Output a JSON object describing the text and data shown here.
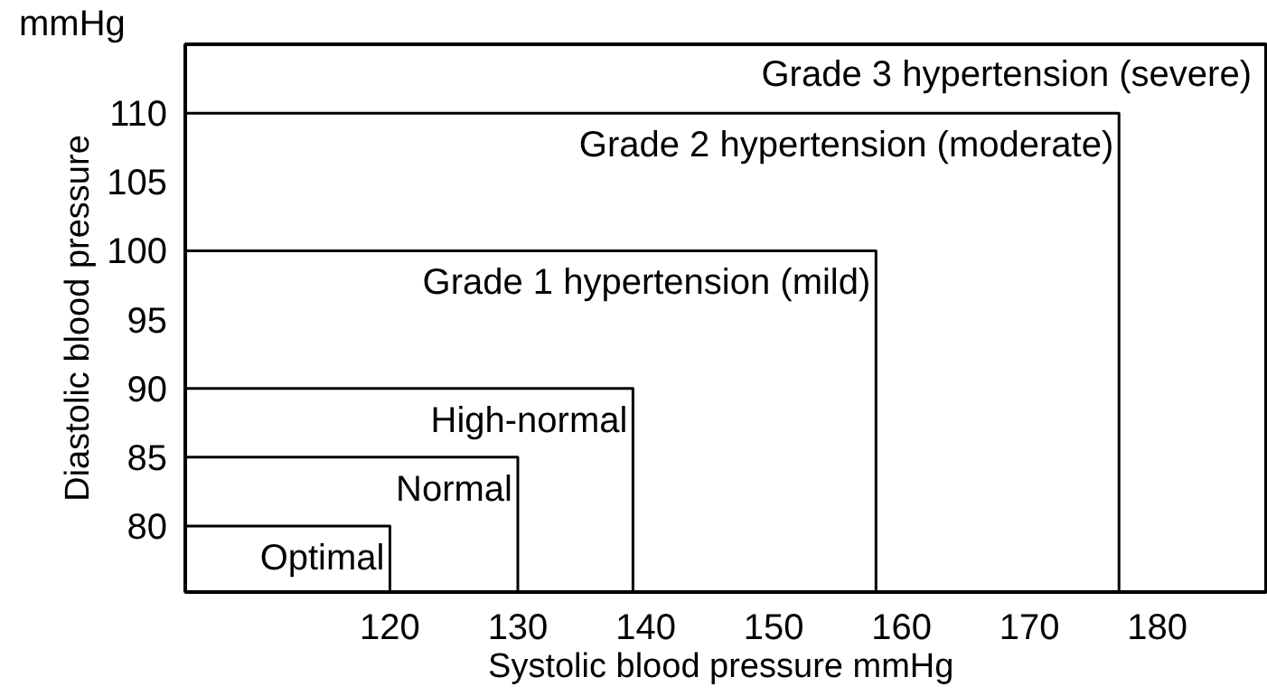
{
  "chart_data": {
    "type": "line",
    "xlabel": "Systolic blood pressure  mmHg",
    "ylabel": "Diastolic blood pressure",
    "annotations": [
      "mmHg",
      "Grade 3 hypertension (severe)"
    ],
    "xlim": [
      104,
      188.5
    ],
    "ylim": [
      75.2,
      115
    ],
    "xticks": [
      120,
      130,
      140,
      150,
      160,
      170,
      180
    ],
    "yticks": [
      80,
      85,
      90,
      95,
      100,
      105,
      110
    ],
    "grid": false,
    "legend": false,
    "marker": "none",
    "line_style": "solid",
    "series": [
      {
        "name": "Optimal",
        "color": "#000000",
        "x": [
          104,
          120,
          120
        ],
        "values": [
          80,
          80,
          75.2
        ]
      },
      {
        "name": "Normal",
        "color": "#000000",
        "x": [
          104,
          130,
          130
        ],
        "values": [
          85,
          85,
          75.2
        ]
      },
      {
        "name": "High-normal",
        "color": "#000000",
        "x": [
          104,
          139,
          139
        ],
        "values": [
          90,
          90,
          75.2
        ]
      },
      {
        "name": "Grade 1 hypertension (mild)",
        "color": "#000000",
        "x": [
          104,
          158,
          158
        ],
        "values": [
          100,
          100,
          75.2
        ]
      },
      {
        "name": "Grade 2 hypertension (moderate)",
        "color": "#000000",
        "x": [
          104,
          177,
          177
        ],
        "values": [
          110,
          110,
          75.2
        ]
      }
    ]
  }
}
